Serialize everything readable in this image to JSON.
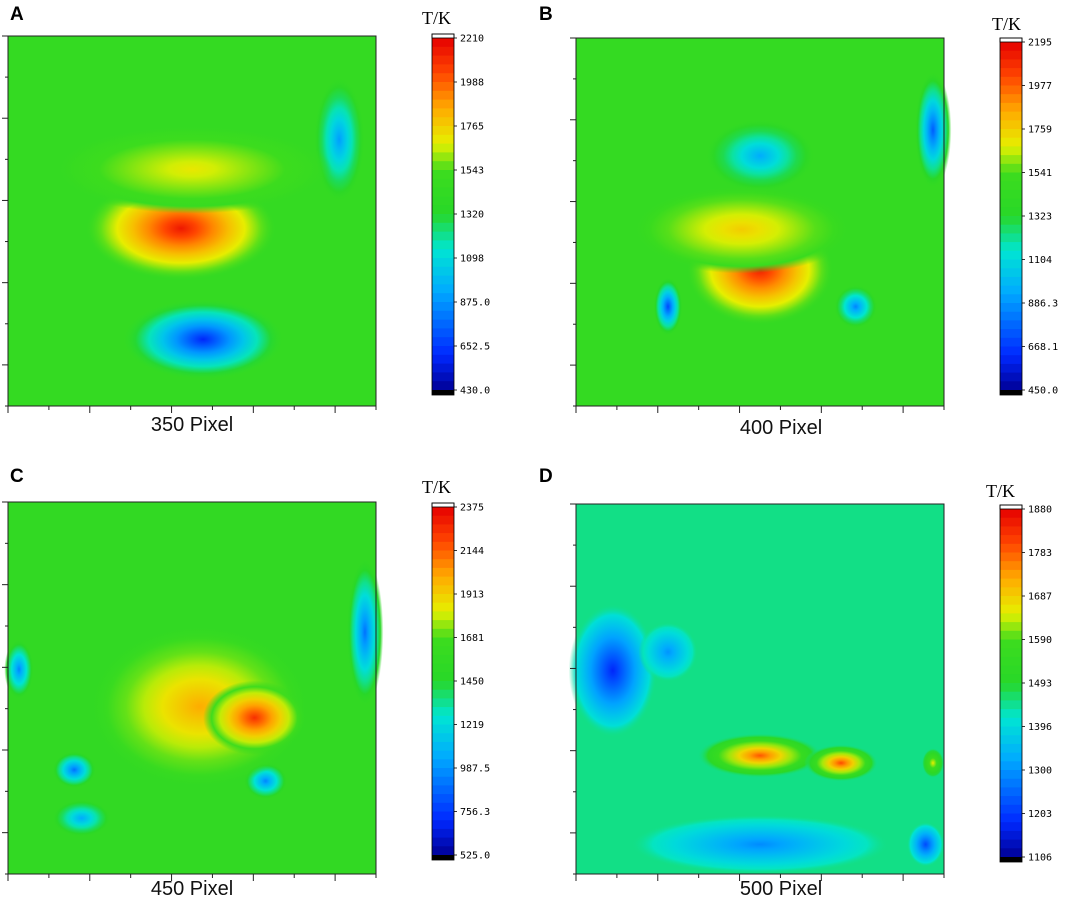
{
  "chart_data": [
    {
      "type": "heatmap",
      "panel_label": "A",
      "xlabel": "350 Pixel",
      "colorbar": {
        "title": "T/K",
        "ticks": [
          "2210",
          "1988",
          "1765",
          "1543",
          "1320",
          "1098",
          "875.0",
          "652.5",
          "430.0"
        ],
        "range": [
          430.0,
          2210
        ]
      },
      "background": 1450,
      "hot_spots": [
        {
          "cx": 0.47,
          "cy": 0.52,
          "rx": 0.26,
          "ry": 0.14,
          "peak": 2150
        },
        {
          "cx": 0.5,
          "cy": 0.36,
          "rx": 0.38,
          "ry": 0.12,
          "peak": 1700
        }
      ],
      "cold_spots": [
        {
          "cx": 0.53,
          "cy": 0.82,
          "rx": 0.22,
          "ry": 0.11,
          "peak": 600
        },
        {
          "cx": 0.9,
          "cy": 0.28,
          "rx": 0.07,
          "ry": 0.17,
          "peak": 900
        }
      ]
    },
    {
      "type": "heatmap",
      "panel_label": "B",
      "xlabel": "400 Pixel",
      "colorbar": {
        "title": "T/K",
        "ticks": [
          "2195",
          "1977",
          "1759",
          "1541",
          "1323",
          "1104",
          "886.3",
          "668.1",
          "450.0"
        ],
        "range": [
          450.0,
          2195
        ]
      },
      "background": 1450,
      "hot_spots": [
        {
          "cx": 0.5,
          "cy": 0.63,
          "rx": 0.2,
          "ry": 0.15,
          "peak": 2120
        },
        {
          "cx": 0.45,
          "cy": 0.52,
          "rx": 0.3,
          "ry": 0.12,
          "peak": 1760
        }
      ],
      "cold_spots": [
        {
          "cx": 0.5,
          "cy": 0.32,
          "rx": 0.15,
          "ry": 0.1,
          "peak": 950
        },
        {
          "cx": 0.25,
          "cy": 0.73,
          "rx": 0.04,
          "ry": 0.08,
          "peak": 700
        },
        {
          "cx": 0.76,
          "cy": 0.73,
          "rx": 0.06,
          "ry": 0.06,
          "peak": 850
        },
        {
          "cx": 0.97,
          "cy": 0.25,
          "rx": 0.05,
          "ry": 0.16,
          "peak": 750
        }
      ]
    },
    {
      "type": "heatmap",
      "panel_label": "C",
      "xlabel": "450 Pixel",
      "colorbar": {
        "title": "T/K",
        "ticks": [
          "2375",
          "2144",
          "1913",
          "1681",
          "1450",
          "1219",
          "987.5",
          "756.3",
          "525.0"
        ],
        "range": [
          525.0,
          2375
        ]
      },
      "background": 1560,
      "hot_spots": [
        {
          "cx": 0.52,
          "cy": 0.55,
          "rx": 0.3,
          "ry": 0.22,
          "peak": 2000
        },
        {
          "cx": 0.67,
          "cy": 0.58,
          "rx": 0.14,
          "ry": 0.1,
          "peak": 2250
        }
      ],
      "cold_spots": [
        {
          "cx": 0.97,
          "cy": 0.35,
          "rx": 0.05,
          "ry": 0.2,
          "peak": 900
        },
        {
          "cx": 0.03,
          "cy": 0.45,
          "rx": 0.04,
          "ry": 0.08,
          "peak": 950
        },
        {
          "cx": 0.18,
          "cy": 0.72,
          "rx": 0.06,
          "ry": 0.05,
          "peak": 900
        },
        {
          "cx": 0.7,
          "cy": 0.75,
          "rx": 0.06,
          "ry": 0.05,
          "peak": 950
        },
        {
          "cx": 0.2,
          "cy": 0.85,
          "rx": 0.08,
          "ry": 0.05,
          "peak": 1050
        }
      ]
    },
    {
      "type": "heatmap",
      "panel_label": "D",
      "xlabel": "500 Pixel",
      "colorbar": {
        "title": "T/K",
        "ticks": [
          "1880",
          "1783",
          "1687",
          "1590",
          "1493",
          "1396",
          "1300",
          "1203",
          "1106"
        ],
        "range": [
          1106,
          1880
        ]
      },
      "background": 1450,
      "hot_spots": [
        {
          "cx": 0.5,
          "cy": 0.68,
          "rx": 0.17,
          "ry": 0.06,
          "peak": 1790
        },
        {
          "cx": 0.72,
          "cy": 0.7,
          "rx": 0.1,
          "ry": 0.05,
          "peak": 1800
        },
        {
          "cx": 0.97,
          "cy": 0.7,
          "rx": 0.03,
          "ry": 0.04,
          "peak": 1650
        }
      ],
      "cold_spots": [
        {
          "cx": 0.1,
          "cy": 0.45,
          "rx": 0.12,
          "ry": 0.18,
          "peak": 1180
        },
        {
          "cx": 0.25,
          "cy": 0.4,
          "rx": 0.08,
          "ry": 0.08,
          "peak": 1300
        },
        {
          "cx": 0.5,
          "cy": 0.92,
          "rx": 0.35,
          "ry": 0.08,
          "peak": 1290
        },
        {
          "cx": 0.95,
          "cy": 0.92,
          "rx": 0.05,
          "ry": 0.06,
          "peak": 1220
        }
      ]
    }
  ]
}
